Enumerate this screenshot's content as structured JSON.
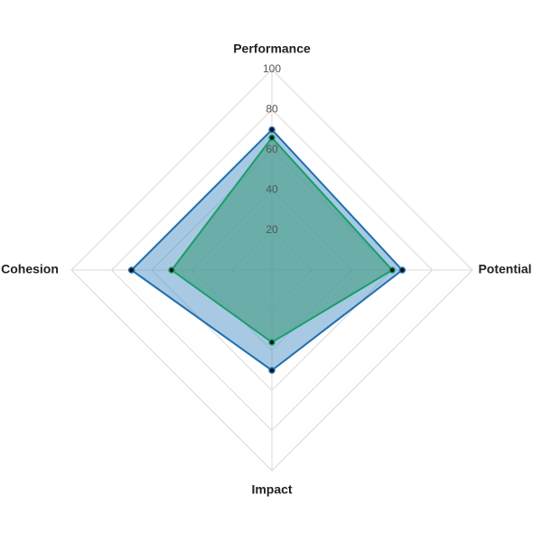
{
  "chart_data": {
    "type": "radar",
    "axes": [
      "Performance",
      "Potential",
      "Impact",
      "Cohesion"
    ],
    "r_range": [
      0,
      100
    ],
    "ticks": [
      "20",
      "40",
      "60",
      "80",
      "100"
    ],
    "tick_values": [
      20,
      40,
      60,
      80,
      100
    ],
    "grid": true,
    "legend": "none",
    "series": [
      {
        "values": [
          70,
          65,
          50,
          70
        ],
        "line_color": "#1f6fae",
        "fill_color": "#4f93c8",
        "fill_opacity": 0.5,
        "marker_color": "#111111"
      },
      {
        "values": [
          66,
          60,
          36,
          50
        ],
        "line_color": "#1a9e68",
        "fill_color": "#4a9e8a",
        "fill_opacity": 0.65,
        "marker_color": "#111111"
      }
    ]
  }
}
